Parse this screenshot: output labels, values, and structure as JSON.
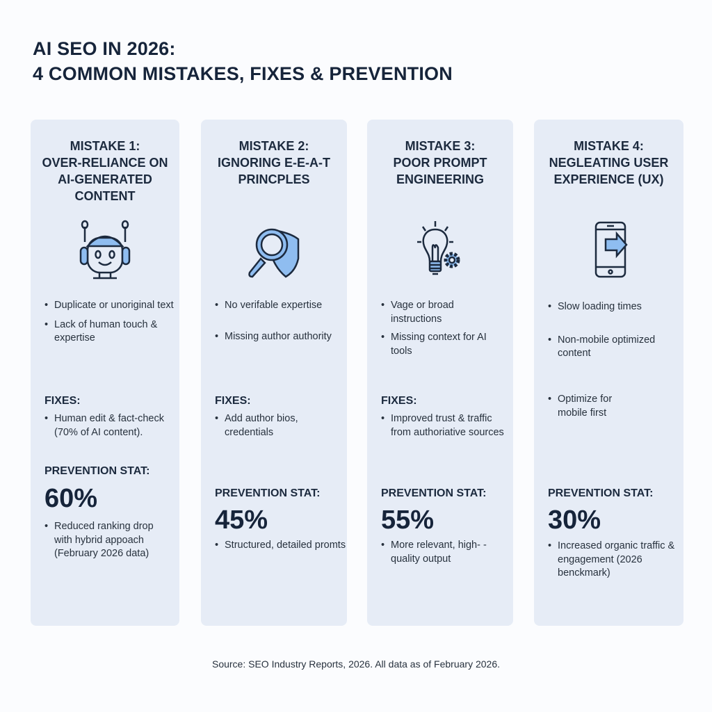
{
  "title": {
    "line1": "AI SEO IN 2026:",
    "line2": "4 COMMON MISTAKES, FIXES & PREVENTION"
  },
  "colors": {
    "card_bg": "#e6ecf6",
    "title": "#16243a",
    "icon_fill": "#8fbdf0",
    "icon_stroke": "#1c2a3e"
  },
  "cards": [
    {
      "title": [
        "MISTAKE 1:",
        "OVER-RELIANCE ON",
        "AI-GENERATED",
        "CONTENT"
      ],
      "icon": "robot-icon",
      "mistakes": [
        "Duplicate or unoriginal text",
        "Lack of human touch & expertise"
      ],
      "fixes_label": "FIXES:",
      "fixes": [
        "Human edit & fact-check (70% of AI content)."
      ],
      "stat_label": "PREVENTION STAT:",
      "stat": "60%",
      "stat_desc": "Reduced ranking drop with hybrid appoach (February 2026 data)"
    },
    {
      "title": [
        "MISTAKE 2:",
        "IGNORING E-E-A-T",
        "PRINCPLES"
      ],
      "icon": "magnifier-shield-icon",
      "mistakes": [
        "No verifable expertise",
        "Missing author authority"
      ],
      "fixes_label": "FIXES:",
      "fixes": [
        "Add author bios, credentials"
      ],
      "stat_label": "PREVENTION STAT:",
      "stat": "45%",
      "stat_desc": "Structured, detailed promts"
    },
    {
      "title": [
        "MISTAKE 3:",
        "POOR PROMPT",
        "ENGINEERING"
      ],
      "icon": "lightbulb-gear-icon",
      "mistakes": [
        "Vage or broad instructions",
        "Missing context for AI tools"
      ],
      "fixes_label": "FIXES:",
      "fixes": [
        "Improved trust & traffic from authoriative sources"
      ],
      "stat_label": "PREVENTION STAT:",
      "stat": "55%",
      "stat_desc": "More relevant, high- -quality output"
    },
    {
      "title": [
        "MISTAKE 4:",
        "NEGLEATING USER",
        "EXPERIENCE (UX)"
      ],
      "icon": "mobile-arrow-icon",
      "mistakes": [
        "Slow loading times",
        "Non-mobile optimized content"
      ],
      "fixes": [
        "Optimize for mobile first"
      ],
      "stat_label": "PREVENTION STAT:",
      "stat": "30%",
      "stat_desc": "Increased organic traffic & engagement (2026 benckmark)"
    }
  ],
  "source": "Source: SEO Industry Reports, 2026. All data as of February 2026."
}
